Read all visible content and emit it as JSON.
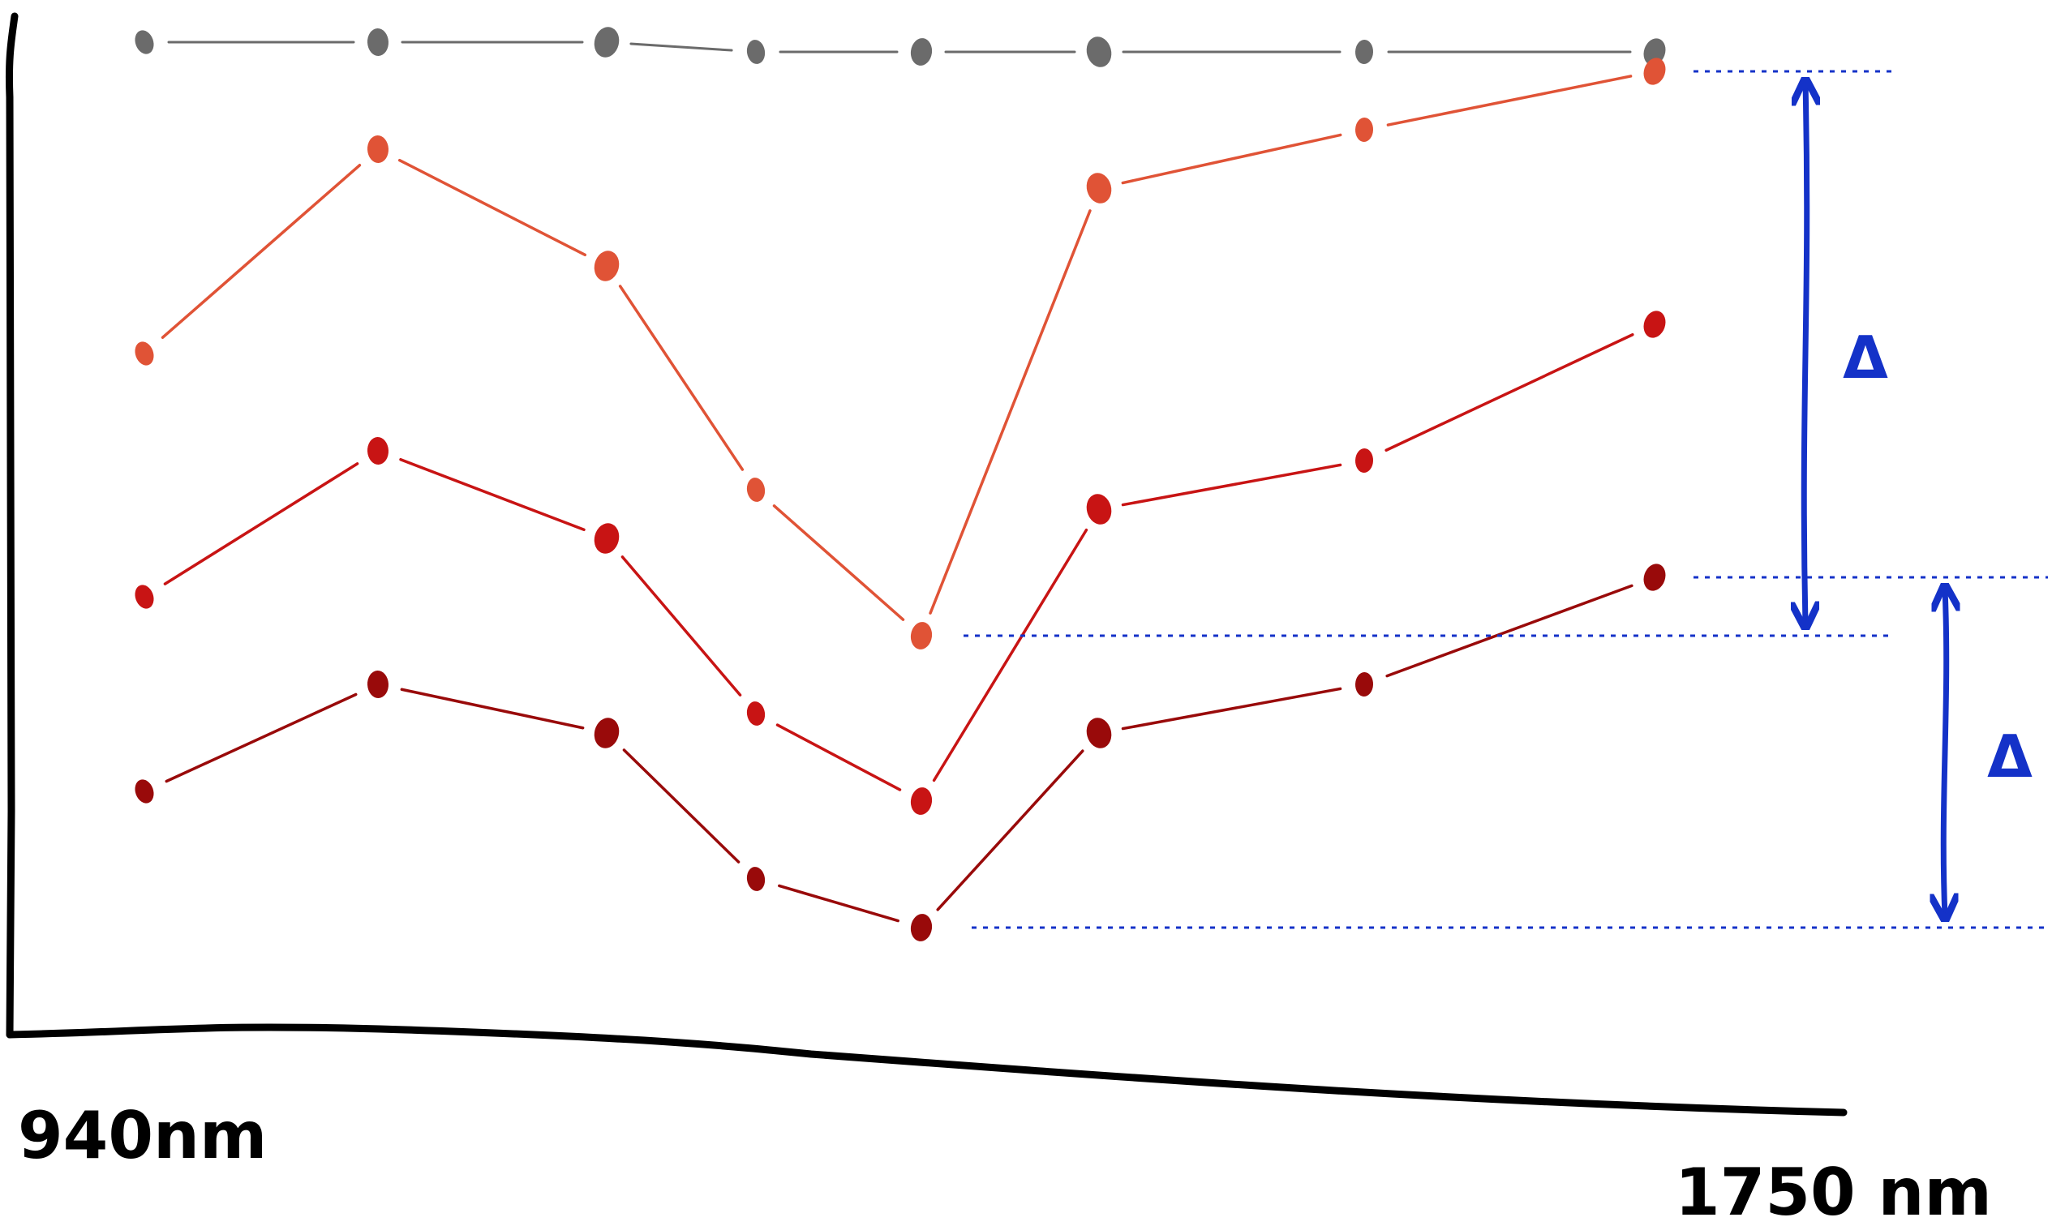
{
  "chart_data": {
    "type": "line",
    "title": "",
    "x_start_label": "940nm",
    "x_end_label": "1750 nm",
    "point_count": 8,
    "series": [
      {
        "key": "grey",
        "color": "#6b6b6b",
        "values": [
          0.99,
          0.99,
          0.99,
          0.98,
          0.98,
          0.98,
          0.98,
          0.98
        ]
      },
      {
        "key": "orange",
        "color": "#e05336",
        "values": [
          0.67,
          0.88,
          0.76,
          0.53,
          0.38,
          0.84,
          0.9,
          0.96
        ]
      },
      {
        "key": "red",
        "color": "#c81414",
        "values": [
          0.42,
          0.57,
          0.48,
          0.3,
          0.21,
          0.51,
          0.56,
          0.7
        ]
      },
      {
        "key": "darkred",
        "color": "#990a0a",
        "values": [
          0.22,
          0.33,
          0.28,
          0.13,
          0.08,
          0.28,
          0.33,
          0.44
        ]
      }
    ],
    "annotations": [
      {
        "label": "Δ",
        "from_series": "orange",
        "from_index": 7,
        "to_series": "orange",
        "to_index": 4,
        "color": "#1432c8"
      },
      {
        "label": "Δ",
        "from_series": "darkred",
        "from_index": 7,
        "to_series": "darkred",
        "to_index": 4,
        "color": "#1432c8"
      }
    ]
  }
}
